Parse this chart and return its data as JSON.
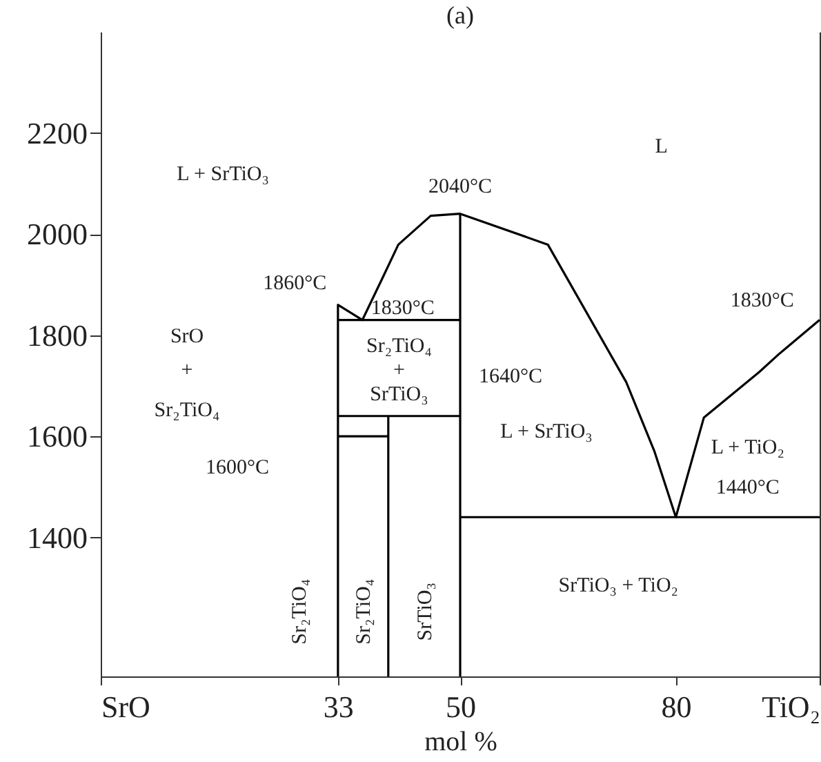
{
  "chart_data": {
    "type": "line",
    "title": "(a)",
    "xlabel": "mol %",
    "xlim": [
      0,
      100
    ],
    "xticks": [
      {
        "value": 0,
        "label": "SrO"
      },
      33,
      50,
      80,
      {
        "value": 100,
        "label": "TiO₂"
      }
    ],
    "ylim": [
      1125,
      2400
    ],
    "yticks": [
      1400,
      1600,
      1800,
      2000,
      2200
    ],
    "grid": false,
    "legend": false,
    "marker": "none",
    "line_style": "solid",
    "series": [
      {
        "color": "#000000",
        "x": [
          33,
          33,
          36.4,
          39.3,
          41.4,
          45.9,
          50,
          62.2,
          73.1,
          77.0,
          80,
          83.9,
          91.6,
          94.3,
          100
        ],
        "values": [
          1125,
          1860,
          1830,
          1916,
          1979,
          2036,
          2040,
          1979,
          1707,
          1571,
          1440,
          1637,
          1727,
          1762,
          1830
        ]
      },
      {
        "color": "#000000",
        "x": [
          33,
          50
        ],
        "values": [
          1830,
          1830
        ]
      },
      {
        "color": "#000000",
        "x": [
          50,
          50
        ],
        "values": [
          1125,
          2040
        ]
      },
      {
        "color": "#000000",
        "x": [
          33,
          50
        ],
        "values": [
          1640,
          1640
        ]
      },
      {
        "color": "#000000",
        "x": [
          40,
          40
        ],
        "values": [
          1125,
          1640
        ]
      },
      {
        "color": "#000000",
        "x": [
          33,
          40
        ],
        "values": [
          1600,
          1600
        ]
      },
      {
        "color": "#000000",
        "x": [
          50,
          100
        ],
        "values": [
          1440,
          1440
        ]
      }
    ],
    "annotations": [
      "L",
      "L + SrTiO₃",
      "2040°C",
      "1860°C",
      "1830°C",
      "SrO",
      "+",
      "Sr₂TiO₄",
      "Sr₂TiO₄",
      "+",
      "SrTiO₃",
      "1640°C",
      "1600°C",
      "L + SrTiO₃",
      "1830°C",
      "L + TiO₂",
      "1440°C",
      "SrTiO₃ + TiO₂",
      "Sr₂TiO₄",
      "Sr₂TiO₄",
      "SrTiO₃"
    ]
  }
}
